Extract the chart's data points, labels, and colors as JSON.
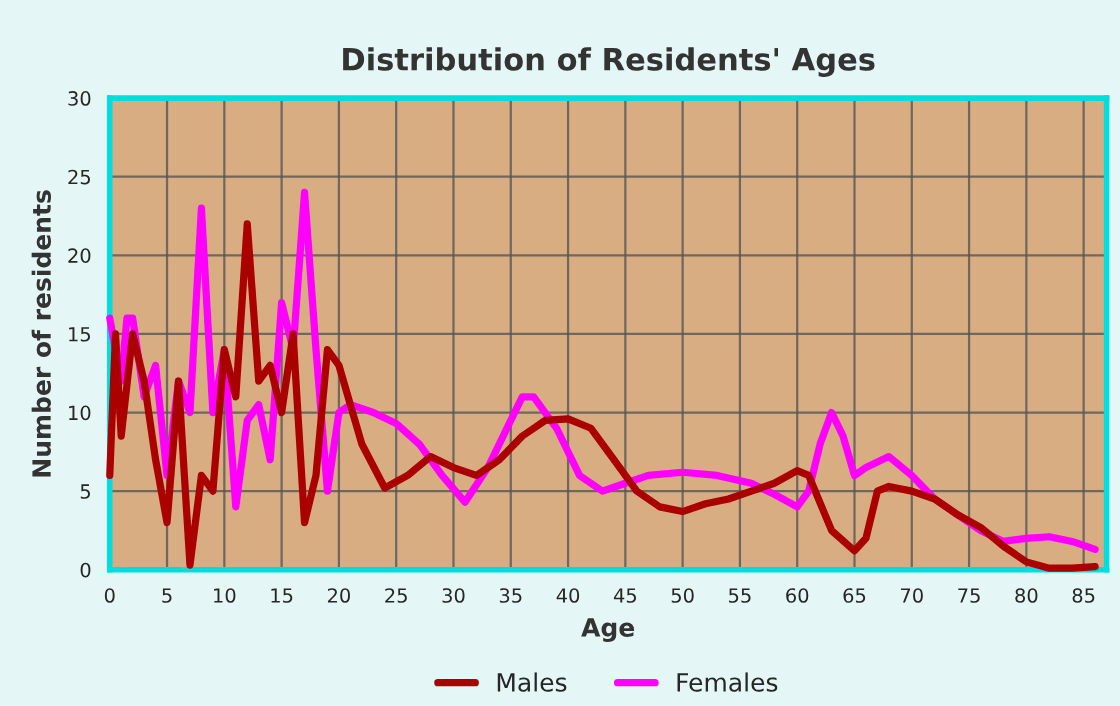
{
  "chart_data": {
    "type": "line",
    "title": "Distribution of Residents' Ages",
    "xlabel": "Age",
    "ylabel": "Number of residents",
    "xlim": [
      0,
      87
    ],
    "xticks": [
      0,
      5,
      10,
      15,
      20,
      25,
      30,
      35,
      40,
      45,
      50,
      55,
      60,
      65,
      70,
      75,
      80,
      85
    ],
    "ylim": [
      0,
      30
    ],
    "yticks": [
      0,
      5,
      10,
      15,
      20,
      25,
      30
    ],
    "grid": true,
    "legend": "bottom",
    "line_style": "solid",
    "series": [
      {
        "name": "Males",
        "color": "#aa0000",
        "x": [
          0,
          0.5,
          1,
          2,
          3,
          4,
          5,
          6,
          7,
          8,
          9,
          10,
          11,
          12,
          13,
          14,
          15,
          16,
          17,
          18,
          19,
          20,
          22,
          24,
          26,
          28,
          30,
          32,
          34,
          36,
          38,
          40,
          42,
          44,
          46,
          48,
          50,
          52,
          54,
          56,
          58,
          60,
          61,
          63,
          65,
          66,
          67,
          68,
          70,
          72,
          74,
          76,
          78,
          80,
          82,
          84,
          86
        ],
        "values": [
          6,
          15,
          8.5,
          15,
          12,
          7,
          3,
          12,
          0.3,
          6,
          5,
          14,
          11,
          22,
          12,
          13,
          10,
          15,
          3,
          6,
          14,
          13,
          8,
          5.2,
          6,
          7.2,
          6.5,
          6,
          7,
          8.5,
          9.5,
          9.6,
          9,
          7,
          5,
          4,
          3.7,
          4.2,
          4.5,
          5,
          5.5,
          6.3,
          6,
          2.5,
          1.2,
          2,
          5,
          5.3,
          5,
          4.5,
          3.5,
          2.7,
          1.5,
          0.5,
          0.1,
          0.1,
          0.2
        ]
      },
      {
        "name": "Females",
        "color": "#ff00ff",
        "x": [
          0,
          1,
          1.5,
          2,
          3,
          4,
          5,
          6,
          7,
          8,
          9,
          10,
          11,
          12,
          13,
          14,
          15,
          16,
          17,
          18,
          19,
          20,
          21,
          23,
          25,
          27,
          29,
          31,
          33,
          35,
          36,
          37,
          39,
          41,
          43,
          45,
          47,
          50,
          53,
          56,
          58,
          60,
          61,
          62,
          63,
          64,
          65,
          66,
          68,
          70,
          72,
          74,
          76,
          78,
          80,
          82,
          84,
          86
        ],
        "values": [
          16,
          12,
          16,
          16,
          11,
          13,
          6,
          12,
          10,
          23,
          10,
          14,
          4,
          9.5,
          10.5,
          7,
          17,
          14,
          24,
          14,
          5,
          10,
          10.5,
          10,
          9.3,
          8,
          6,
          4.3,
          6.5,
          9.5,
          11,
          11,
          9,
          6,
          5,
          5.5,
          6,
          6.2,
          6,
          5.5,
          4.8,
          4,
          5,
          8,
          10,
          8.5,
          6,
          6.5,
          7.2,
          6,
          4.5,
          3.5,
          2.5,
          1.8,
          2,
          2.1,
          1.8,
          1.3
        ]
      }
    ]
  }
}
